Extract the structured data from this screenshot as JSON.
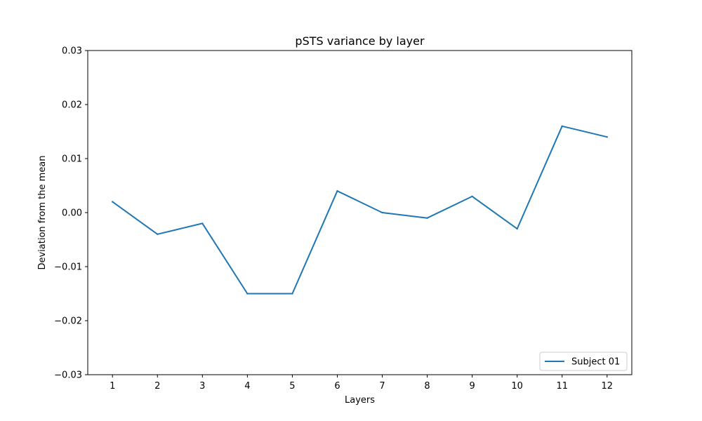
{
  "chart_data": {
    "type": "line",
    "title": "pSTS variance by layer",
    "xlabel": "Layers",
    "ylabel": "Deviation from the mean",
    "x": [
      1,
      2,
      3,
      4,
      5,
      6,
      7,
      8,
      9,
      10,
      11,
      12
    ],
    "xticks": [
      "1",
      "2",
      "3",
      "4",
      "5",
      "6",
      "7",
      "8",
      "9",
      "10",
      "11",
      "12"
    ],
    "ylim": [
      -0.03,
      0.03
    ],
    "yticks": [
      {
        "value": -0.03,
        "label": "−0.03"
      },
      {
        "value": -0.02,
        "label": "−0.02"
      },
      {
        "value": -0.01,
        "label": "−0.01"
      },
      {
        "value": 0.0,
        "label": "0.00"
      },
      {
        "value": 0.01,
        "label": "0.01"
      },
      {
        "value": 0.02,
        "label": "0.02"
      },
      {
        "value": 0.03,
        "label": "0.03"
      }
    ],
    "series": [
      {
        "name": "Subject 01",
        "color": "#1f77b4",
        "values": [
          0.002,
          -0.004,
          -0.002,
          -0.015,
          -0.015,
          0.004,
          0.0,
          -0.001,
          0.003,
          -0.003,
          0.016,
          0.014
        ]
      }
    ],
    "grid": false,
    "legend_position": "lower-right"
  }
}
